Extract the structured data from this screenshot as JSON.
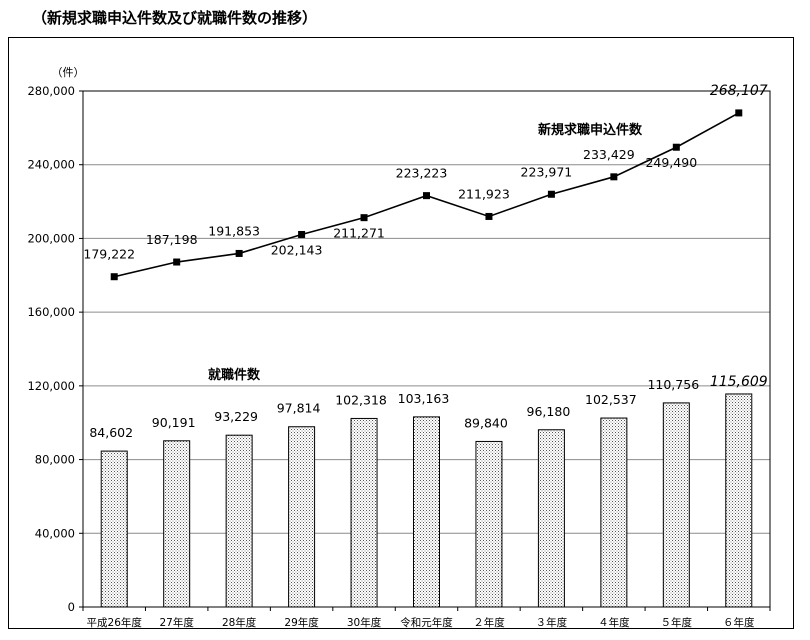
{
  "page": {
    "title": "（新規求職申込件数及び就職件数の推移）"
  },
  "chart_data": {
    "type": "bar",
    "y_unit": "（件）",
    "ylim": [
      0,
      280000
    ],
    "y_ticks": [
      {
        "value": 0,
        "label": "0"
      },
      {
        "value": 40000,
        "label": "40,000"
      },
      {
        "value": 80000,
        "label": "80,000"
      },
      {
        "value": 120000,
        "label": "120,000"
      },
      {
        "value": 160000,
        "label": "160,000"
      },
      {
        "value": 200000,
        "label": "200,000"
      },
      {
        "value": 240000,
        "label": "240,000"
      },
      {
        "value": 280000,
        "label": "280,000"
      }
    ],
    "grid": true,
    "categories": [
      "平成26年度",
      "27年度",
      "28年度",
      "29年度",
      "30年度",
      "令和元年度",
      "２年度",
      "３年度",
      "４年度",
      "５年度",
      "６年度"
    ],
    "series": [
      {
        "name": "新規求職申込件数",
        "kind": "line",
        "values": [
          179222,
          187198,
          191853,
          202143,
          211271,
          223223,
          211923,
          223971,
          233429,
          249490,
          268107
        ],
        "labels": [
          "179,222",
          "187,198",
          "191,853",
          "202,143",
          "211,271",
          "223,223",
          "211,923",
          "223,971",
          "233,429",
          "249,490",
          "268,107"
        ]
      },
      {
        "name": "就職件数",
        "kind": "bar",
        "values": [
          84602,
          90191,
          93229,
          97814,
          102318,
          103163,
          89840,
          96180,
          102537,
          110756,
          115609
        ],
        "labels": [
          "84,602",
          "90,191",
          "93,229",
          "97,814",
          "102,318",
          "103,163",
          "89,840",
          "96,180",
          "102,537",
          "110,756",
          "115,609"
        ]
      }
    ]
  }
}
